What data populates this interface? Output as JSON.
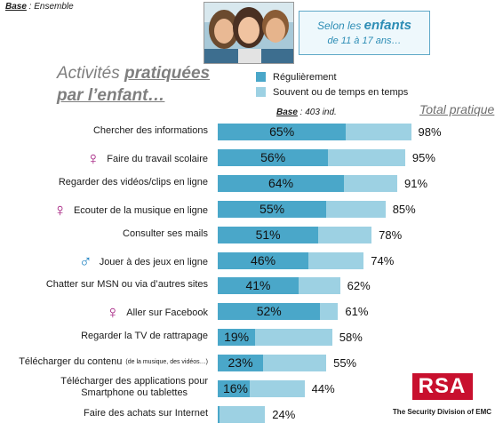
{
  "base_top": {
    "label": "Base",
    "value": " : Ensemble"
  },
  "badge": {
    "prefix": "Selon les ",
    "highlight": "enfants",
    "line2": "de 11 à 17 ans…"
  },
  "title": {
    "plain": "Activités ",
    "underlined1": "pratiquées",
    "underlined2": "par l’enfant…"
  },
  "legend": [
    {
      "label": "Régulièrement",
      "color": "#4aa7c9"
    },
    {
      "label": "Souvent ou de temps en temps",
      "color": "#9dd1e3"
    }
  ],
  "base_mid": {
    "label": "Base",
    "value": " : 403 ind."
  },
  "total_header": "Total pratique",
  "colors": {
    "regulier": "#4aa7c9",
    "souvent": "#9dd1e3",
    "female": "#a0157a",
    "male": "#1f83c2"
  },
  "chart_data": {
    "type": "bar",
    "orientation": "horizontal",
    "stacked": true,
    "categories": [
      "Chercher des informations",
      "Faire du travail scolaire",
      "Regarder des vidéos/clips en ligne",
      "Ecouter de la musique en ligne",
      "Consulter ses mails",
      "Jouer à des jeux en ligne",
      "Chatter sur MSN ou via d’autres sites",
      "Aller sur Facebook",
      "Regarder la TV de rattrapage",
      "Télécharger du contenu",
      "Télécharger des applications pour Smartphone ou tablettes",
      "Faire des achats sur Internet"
    ],
    "label_lines": [
      [
        "Chercher des informations"
      ],
      [
        "Faire du travail scolaire"
      ],
      [
        "Regarder des vidéos/clips en ligne"
      ],
      [
        "Ecouter de la musique en ligne"
      ],
      [
        "Consulter ses mails"
      ],
      [
        "Jouer à des jeux en ligne"
      ],
      [
        "Chatter sur MSN ou via d’autres sites"
      ],
      [
        "Aller sur Facebook"
      ],
      [
        "Regarder la TV de rattrapage"
      ],
      [
        "Télécharger du contenu"
      ],
      [
        "Télécharger des applications pour",
        "Smartphone ou tablettes"
      ],
      [
        "Faire des achats sur Internet"
      ]
    ],
    "label_notes": [
      "",
      "",
      "",
      "",
      "",
      "",
      "",
      "",
      "",
      "(de la musique, des vidéos…)",
      "",
      ""
    ],
    "gender_symbols": [
      "",
      "female",
      "",
      "female",
      "",
      "male",
      "",
      "female",
      "",
      "",
      "",
      ""
    ],
    "series": [
      {
        "name": "Régulièrement",
        "values": [
          65,
          56,
          64,
          55,
          51,
          46,
          41,
          52,
          19,
          23,
          16,
          1
        ]
      },
      {
        "name": "Souvent ou de temps en temps",
        "values": [
          33,
          39,
          27,
          30,
          27,
          28,
          21,
          9,
          39,
          32,
          28,
          23
        ]
      }
    ],
    "regulier_labels": [
      "65%",
      "56%",
      "64%",
      "55%",
      "51%",
      "46%",
      "41%",
      "52%",
      "19%",
      "23%",
      "16%",
      ""
    ],
    "totals": [
      "98%",
      "95%",
      "91%",
      "85%",
      "78%",
      "74%",
      "62%",
      "61%",
      "58%",
      "55%",
      "44%",
      "24%"
    ],
    "xlim": [
      0,
      100
    ]
  },
  "logo": {
    "name": "RSA",
    "tagline": "The Security Division of EMC"
  }
}
